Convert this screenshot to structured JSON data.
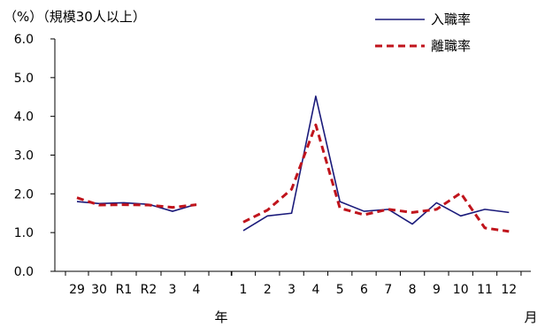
{
  "chart_data": {
    "type": "line",
    "y_unit_label": "（%）（規模30人以上）",
    "ylim": [
      0,
      6
    ],
    "y_ticks": [
      "0.0",
      "1.0",
      "2.0",
      "3.0",
      "4.0",
      "5.0",
      "6.0"
    ],
    "grid": false,
    "legend_position": "top-right",
    "annual_categories": [
      "29",
      "30",
      "R1",
      "R2",
      "3",
      "4"
    ],
    "annual_group_label": "年",
    "monthly_categories": [
      "1",
      "2",
      "3",
      "4",
      "5",
      "6",
      "7",
      "8",
      "9",
      "10",
      "11",
      "12"
    ],
    "monthly_group_label": "月",
    "series": [
      {
        "name": "入職率",
        "color": "#1a1a7a",
        "dash": "solid",
        "annual_values": [
          1.8,
          1.75,
          1.77,
          1.73,
          1.55,
          1.73
        ],
        "monthly_values": [
          1.05,
          1.43,
          1.5,
          4.52,
          1.8,
          1.55,
          1.6,
          1.22,
          1.77,
          1.43,
          1.6,
          1.52
        ]
      },
      {
        "name": "離職率",
        "color": "#c0141c",
        "dash": "dashed",
        "annual_values": [
          1.9,
          1.71,
          1.72,
          1.71,
          1.65,
          1.72
        ],
        "monthly_values": [
          1.27,
          1.58,
          2.12,
          3.78,
          1.63,
          1.46,
          1.6,
          1.52,
          1.6,
          2.02,
          1.12,
          1.03
        ]
      }
    ]
  }
}
